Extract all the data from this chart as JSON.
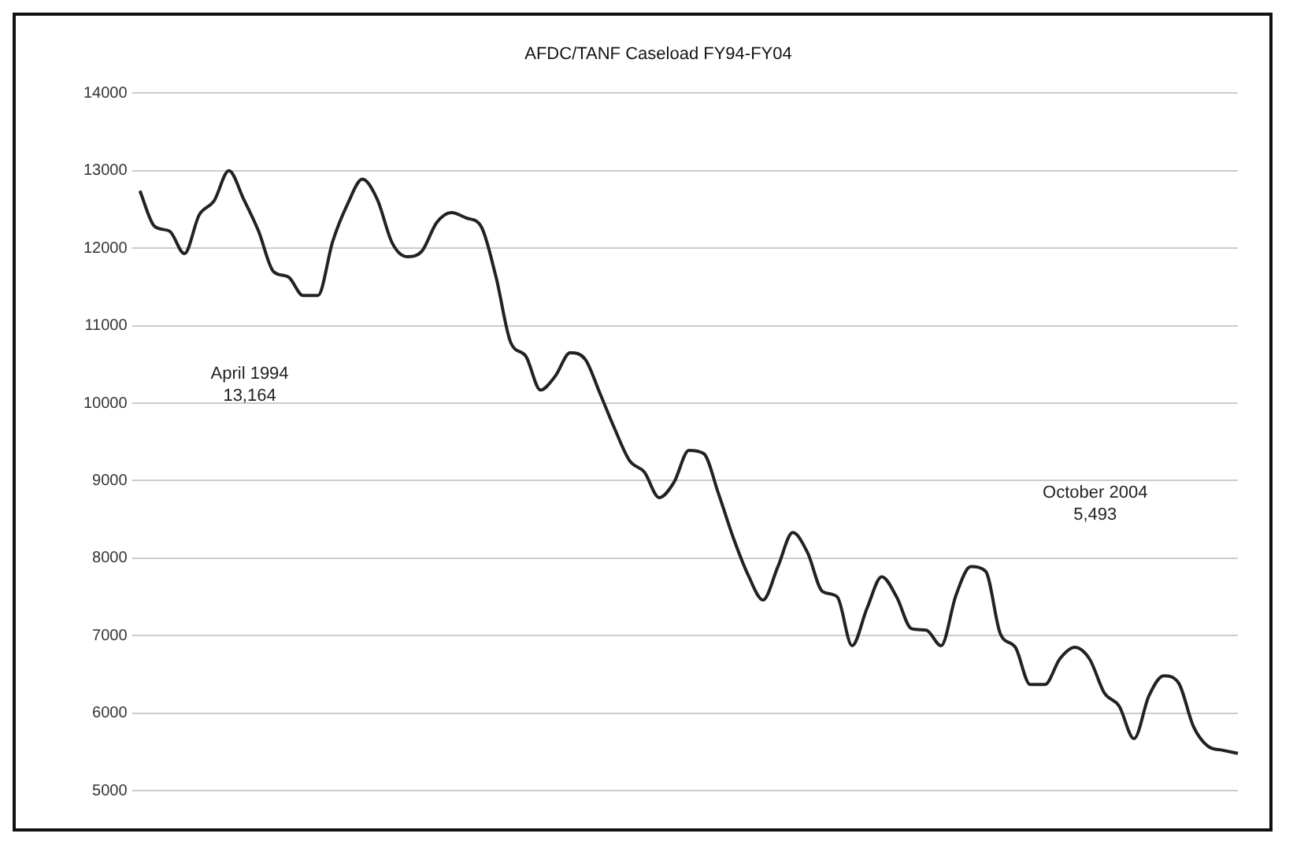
{
  "chart_data": {
    "type": "line",
    "title": "AFDC/TANF Caseload FY94-FY04",
    "categories": [
      null,
      null,
      null,
      null,
      null,
      null,
      null,
      null,
      null,
      null,
      null,
      null,
      null,
      null,
      null,
      null,
      null,
      null,
      null,
      null,
      null,
      null,
      null,
      null,
      null,
      null,
      null,
      null,
      null,
      null,
      null,
      null,
      null,
      null,
      null,
      null,
      null,
      null,
      null,
      null,
      null,
      null,
      null,
      null,
      null,
      null,
      null,
      null,
      null,
      null,
      null,
      null,
      null,
      null,
      null,
      null,
      null,
      null,
      null,
      null,
      null,
      null,
      null,
      null,
      null,
      null,
      null,
      null,
      null,
      null,
      null,
      null,
      null,
      null,
      null
    ],
    "series": [
      {
        "color": "#222222",
        "values": [
          12740,
          12280,
          12220,
          11930,
          12430,
          12610,
          13000,
          12630,
          12220,
          11700,
          11630,
          11390,
          11390,
          12090,
          12570,
          12890,
          12630,
          12070,
          11890,
          11960,
          12330,
          12460,
          12390,
          12280,
          11630,
          10780,
          10610,
          10170,
          10350,
          10650,
          10570,
          10130,
          9670,
          9260,
          9110,
          8780,
          8980,
          9390,
          9350,
          8830,
          8260,
          7780,
          7460,
          7890,
          8330,
          8070,
          7570,
          7500,
          6870,
          7350,
          7760,
          7500,
          7090,
          7070,
          6870,
          7520,
          7890,
          7830,
          7020,
          6850,
          6370,
          6370,
          6700,
          6850,
          6700,
          6260,
          6090,
          5670,
          6220,
          6480,
          6390,
          5830,
          5570,
          5520,
          5480
        ]
      }
    ],
    "ylim": [
      5000,
      14000
    ],
    "yticks": [
      5000,
      6000,
      7000,
      8000,
      9000,
      10000,
      11000,
      12000,
      13000,
      14000
    ],
    "grid": "y",
    "tick_labels": "y",
    "marker": "none",
    "line_style": "solid",
    "annotations": [
      "April 1994\n13,164",
      "October 2004\n5,493"
    ]
  }
}
